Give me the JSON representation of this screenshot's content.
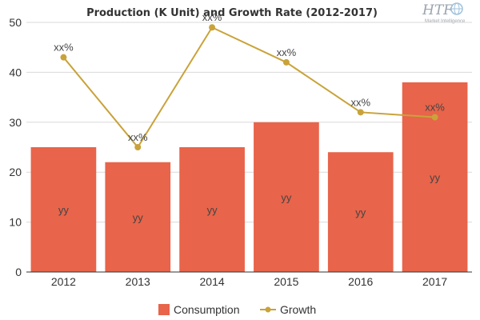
{
  "chart_data": {
    "type": "bar",
    "title": "Production (K Unit) and Growth Rate (2012-2017)",
    "categories": [
      "2012",
      "2013",
      "2014",
      "2015",
      "2016",
      "2017"
    ],
    "ylim": [
      0,
      50
    ],
    "yticks": [
      0,
      10,
      20,
      30,
      40,
      50
    ],
    "grid": true,
    "legend_placement": "bottom",
    "series": [
      {
        "name": "Consumption",
        "type": "bar",
        "color": "#e8644a",
        "values": [
          25,
          22,
          25,
          30,
          24,
          38
        ],
        "labels": [
          "yy",
          "yy",
          "yy",
          "yy",
          "yy",
          "yy"
        ]
      },
      {
        "name": "Growth",
        "type": "line",
        "color": "#c9a33a",
        "values": [
          43,
          25,
          49,
          42,
          32,
          31
        ],
        "labels": [
          "xx%",
          "xx%",
          "xx%",
          "xx%",
          "xx%",
          "xx%"
        ]
      }
    ]
  },
  "logo": {
    "text": "HTF",
    "subtext": "Market Intelligence"
  }
}
